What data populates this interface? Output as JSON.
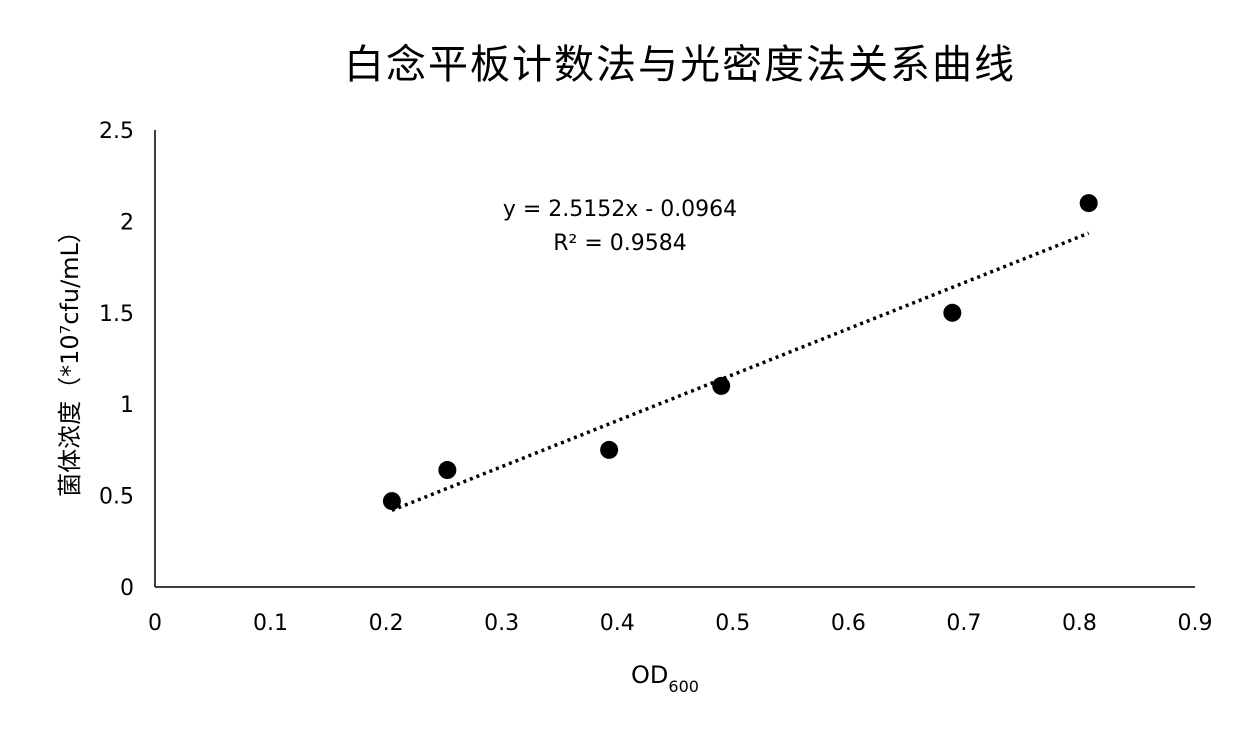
{
  "chart_data": {
    "type": "scatter",
    "title": "白念平板计数法与光密度法关系曲线",
    "xlabel": "OD",
    "xlabel_subscript": "600",
    "ylabel": "菌体浓度（*10⁷cfu/mL）",
    "xlim": [
      0,
      0.9
    ],
    "ylim": [
      0,
      2.5
    ],
    "x_ticks": [
      "0",
      "0.1",
      "0.2",
      "0.3",
      "0.4",
      "0.5",
      "0.6",
      "0.7",
      "0.8",
      "0.9"
    ],
    "y_ticks": [
      "0",
      "0.5",
      "1",
      "1.5",
      "2",
      "2.5"
    ],
    "x_tick_values": [
      0,
      0.1,
      0.2,
      0.3,
      0.4,
      0.5,
      0.6,
      0.7,
      0.8,
      0.9
    ],
    "y_tick_values": [
      0,
      0.5,
      1,
      1.5,
      2,
      2.5
    ],
    "points": [
      {
        "x": 0.205,
        "y": 0.47
      },
      {
        "x": 0.253,
        "y": 0.64
      },
      {
        "x": 0.393,
        "y": 0.75
      },
      {
        "x": 0.49,
        "y": 1.1
      },
      {
        "x": 0.69,
        "y": 1.5
      },
      {
        "x": 0.808,
        "y": 2.1
      }
    ],
    "trendline": {
      "slope": 2.5152,
      "intercept": -0.0964,
      "x_range": [
        0.205,
        0.808
      ],
      "style": "dotted"
    },
    "equation": "y = 2.5152x - 0.0964",
    "r_squared": "R² = 0.9584",
    "grid": false,
    "legend": "none",
    "marker_color": "#000000",
    "trend_color": "#000000"
  }
}
